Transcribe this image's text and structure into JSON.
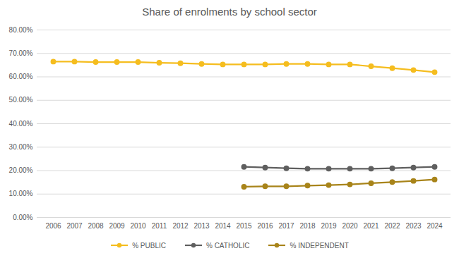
{
  "chart_data": {
    "type": "line",
    "title": "Share of enrolments by school sector",
    "categories": [
      "2006",
      "2007",
      "2008",
      "2009",
      "2010",
      "2011",
      "2012",
      "2013",
      "2014",
      "2015",
      "2016",
      "2017",
      "2018",
      "2019",
      "2020",
      "2021",
      "2022",
      "2023",
      "2024"
    ],
    "series": [
      {
        "name": "% PUBLIC",
        "color": "#f5bd1f",
        "values": [
          66.5,
          66.5,
          66.3,
          66.3,
          66.3,
          66.0,
          65.8,
          65.5,
          65.3,
          65.3,
          65.3,
          65.5,
          65.5,
          65.3,
          65.3,
          64.5,
          63.7,
          62.9,
          62.0
        ]
      },
      {
        "name": "% CATHOLIC",
        "color": "#5f5f5f",
        "values": [
          null,
          null,
          null,
          null,
          null,
          null,
          null,
          null,
          null,
          21.6,
          21.3,
          21.0,
          20.8,
          20.8,
          20.8,
          20.8,
          21.0,
          21.3,
          21.6
        ]
      },
      {
        "name": "% INDEPENDENT",
        "color": "#a8841a",
        "values": [
          null,
          null,
          null,
          null,
          null,
          null,
          null,
          null,
          null,
          13.1,
          13.3,
          13.3,
          13.6,
          13.8,
          14.1,
          14.6,
          15.1,
          15.6,
          16.2
        ]
      }
    ],
    "ylim": [
      0,
      80
    ],
    "yticks": [
      {
        "value": 0,
        "label": "0.00%"
      },
      {
        "value": 10,
        "label": "10.00%"
      },
      {
        "value": 20,
        "label": "20.00%"
      },
      {
        "value": 30,
        "label": "30.00%"
      },
      {
        "value": 40,
        "label": "40.00%"
      },
      {
        "value": 50,
        "label": "50.00%"
      },
      {
        "value": 60,
        "label": "60.00%"
      },
      {
        "value": 70,
        "label": "70.00%"
      },
      {
        "value": 80,
        "label": "80.00%"
      }
    ],
    "grid": true,
    "legend": "bottom",
    "marker": "circle"
  }
}
